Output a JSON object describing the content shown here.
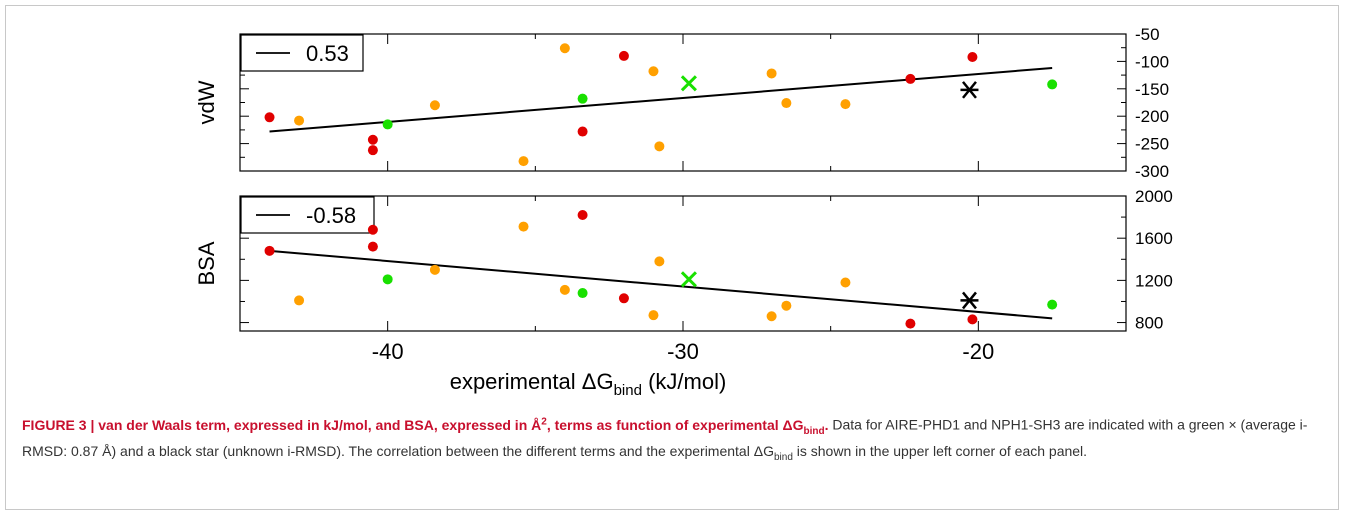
{
  "chart_data": [
    {
      "panel": "top",
      "type": "scatter",
      "ylabel": "vdW",
      "xlabel": "experimental ΔG",
      "xlabel_sub": "bind",
      "xlabel_unit": "(kJ/mol)",
      "xlim": [
        -45,
        -15
      ],
      "ylim": [
        -300,
        -50
      ],
      "y_axis_side": "right",
      "x_ticks": [
        -40,
        -30,
        -20
      ],
      "y_ticks": [
        -50,
        -100,
        -150,
        -200,
        -250,
        -300
      ],
      "legend": {
        "label": "0.53",
        "position": "top-left"
      },
      "fit_line": {
        "x": [
          -44.0,
          -17.5
        ],
        "y": [
          -228,
          -112
        ]
      },
      "series": [
        {
          "color": "#e00000",
          "marker": "dot",
          "points": [
            [
              -44.0,
              -202
            ],
            [
              -40.5,
              -243
            ],
            [
              -40.5,
              -262
            ],
            [
              -33.4,
              -228
            ],
            [
              -32.0,
              -90
            ],
            [
              -22.3,
              -132
            ],
            [
              -20.2,
              -92
            ]
          ]
        },
        {
          "color": "#ffa000",
          "marker": "dot",
          "points": [
            [
              -43.0,
              -208
            ],
            [
              -38.4,
              -180
            ],
            [
              -35.4,
              -282
            ],
            [
              -34.0,
              -76
            ],
            [
              -31.0,
              -118
            ],
            [
              -30.8,
              -255
            ],
            [
              -27.0,
              -122
            ],
            [
              -26.5,
              -176
            ],
            [
              -24.5,
              -178
            ]
          ]
        },
        {
          "color": "#19e000",
          "marker": "dot",
          "points": [
            [
              -40.0,
              -215
            ],
            [
              -33.4,
              -168
            ],
            [
              -17.5,
              -142
            ]
          ]
        },
        {
          "color": "#19e000",
          "marker": "cross",
          "points": [
            [
              -29.8,
              -140
            ]
          ]
        },
        {
          "color": "#000000",
          "marker": "star",
          "points": [
            [
              -20.3,
              -152
            ]
          ]
        }
      ]
    },
    {
      "panel": "bottom",
      "type": "scatter",
      "ylabel": "BSA",
      "xlim": [
        -45,
        -15
      ],
      "ylim": [
        720,
        2000
      ],
      "y_axis_side": "right",
      "x_ticks": [
        -40,
        -30,
        -20
      ],
      "y_ticks": [
        800,
        1200,
        1600,
        2000
      ],
      "legend": {
        "label": "-0.58",
        "position": "top-left"
      },
      "fit_line": {
        "x": [
          -44.0,
          -17.5
        ],
        "y": [
          1480,
          840
        ]
      },
      "series": [
        {
          "color": "#e00000",
          "marker": "dot",
          "points": [
            [
              -44.0,
              1480
            ],
            [
              -40.5,
              1680
            ],
            [
              -40.5,
              1520
            ],
            [
              -33.4,
              1820
            ],
            [
              -32.0,
              1030
            ],
            [
              -22.3,
              790
            ],
            [
              -20.2,
              830
            ]
          ]
        },
        {
          "color": "#ffa000",
          "marker": "dot",
          "points": [
            [
              -43.0,
              1010
            ],
            [
              -38.4,
              1300
            ],
            [
              -35.4,
              1710
            ],
            [
              -34.0,
              1110
            ],
            [
              -31.0,
              870
            ],
            [
              -30.8,
              1380
            ],
            [
              -27.0,
              860
            ],
            [
              -26.5,
              960
            ],
            [
              -24.5,
              1180
            ]
          ]
        },
        {
          "color": "#19e000",
          "marker": "dot",
          "points": [
            [
              -40.0,
              1210
            ],
            [
              -33.4,
              1080
            ],
            [
              -17.5,
              970
            ]
          ]
        },
        {
          "color": "#19e000",
          "marker": "cross",
          "points": [
            [
              -29.8,
              1210
            ]
          ]
        },
        {
          "color": "#000000",
          "marker": "star",
          "points": [
            [
              -20.3,
              1010
            ]
          ]
        }
      ]
    }
  ],
  "caption": {
    "label": "FIGURE 3 | van der Waals term, expressed in kJ/mol, and BSA, expressed in Å",
    "label_sup": "2",
    "label_tail": ", terms as function of experimental ΔG",
    "label_sub": "bind",
    "label_end": ".",
    "text1": " Data for AIRE-PHD1 and NPH1-SH3 are indicated with a green × (average i-RMSD: 0.87 Å) and a black star (unknown i-RMSD). The correlation between the different terms and the experimental ΔG",
    "text_sub": "bind",
    "text2": " is shown in the upper left corner of each panel."
  }
}
